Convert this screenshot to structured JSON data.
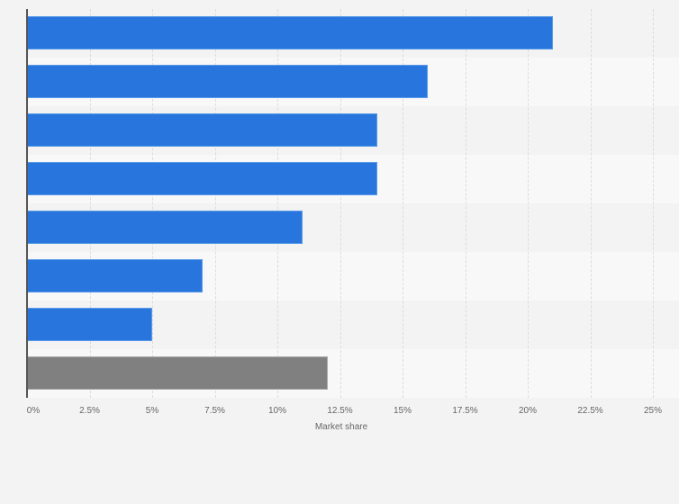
{
  "chart_data": {
    "type": "bar",
    "orientation": "horizontal",
    "title": "",
    "xlabel": "Market share",
    "ylabel": "",
    "xlim": [
      0,
      25
    ],
    "x_ticks": [
      "0%",
      "2.5%",
      "5%",
      "7.5%",
      "10%",
      "12.5%",
      "15%",
      "17.5%",
      "20%",
      "22.5%",
      "25%"
    ],
    "categories": [
      "",
      "",
      "",
      "",
      "",
      "",
      "",
      ""
    ],
    "values": [
      21,
      16,
      14,
      14,
      11,
      7,
      5,
      12
    ],
    "bar_colors": [
      "#2876dd",
      "#2876dd",
      "#2876dd",
      "#2876dd",
      "#2876dd",
      "#2876dd",
      "#2876dd",
      "#808080"
    ],
    "grid": true,
    "legend": null
  },
  "colors": {
    "primary_bar": "#2876dd",
    "other_bar": "#808080",
    "background": "#f3f3f3",
    "band_alt": "#f8f8f8"
  }
}
